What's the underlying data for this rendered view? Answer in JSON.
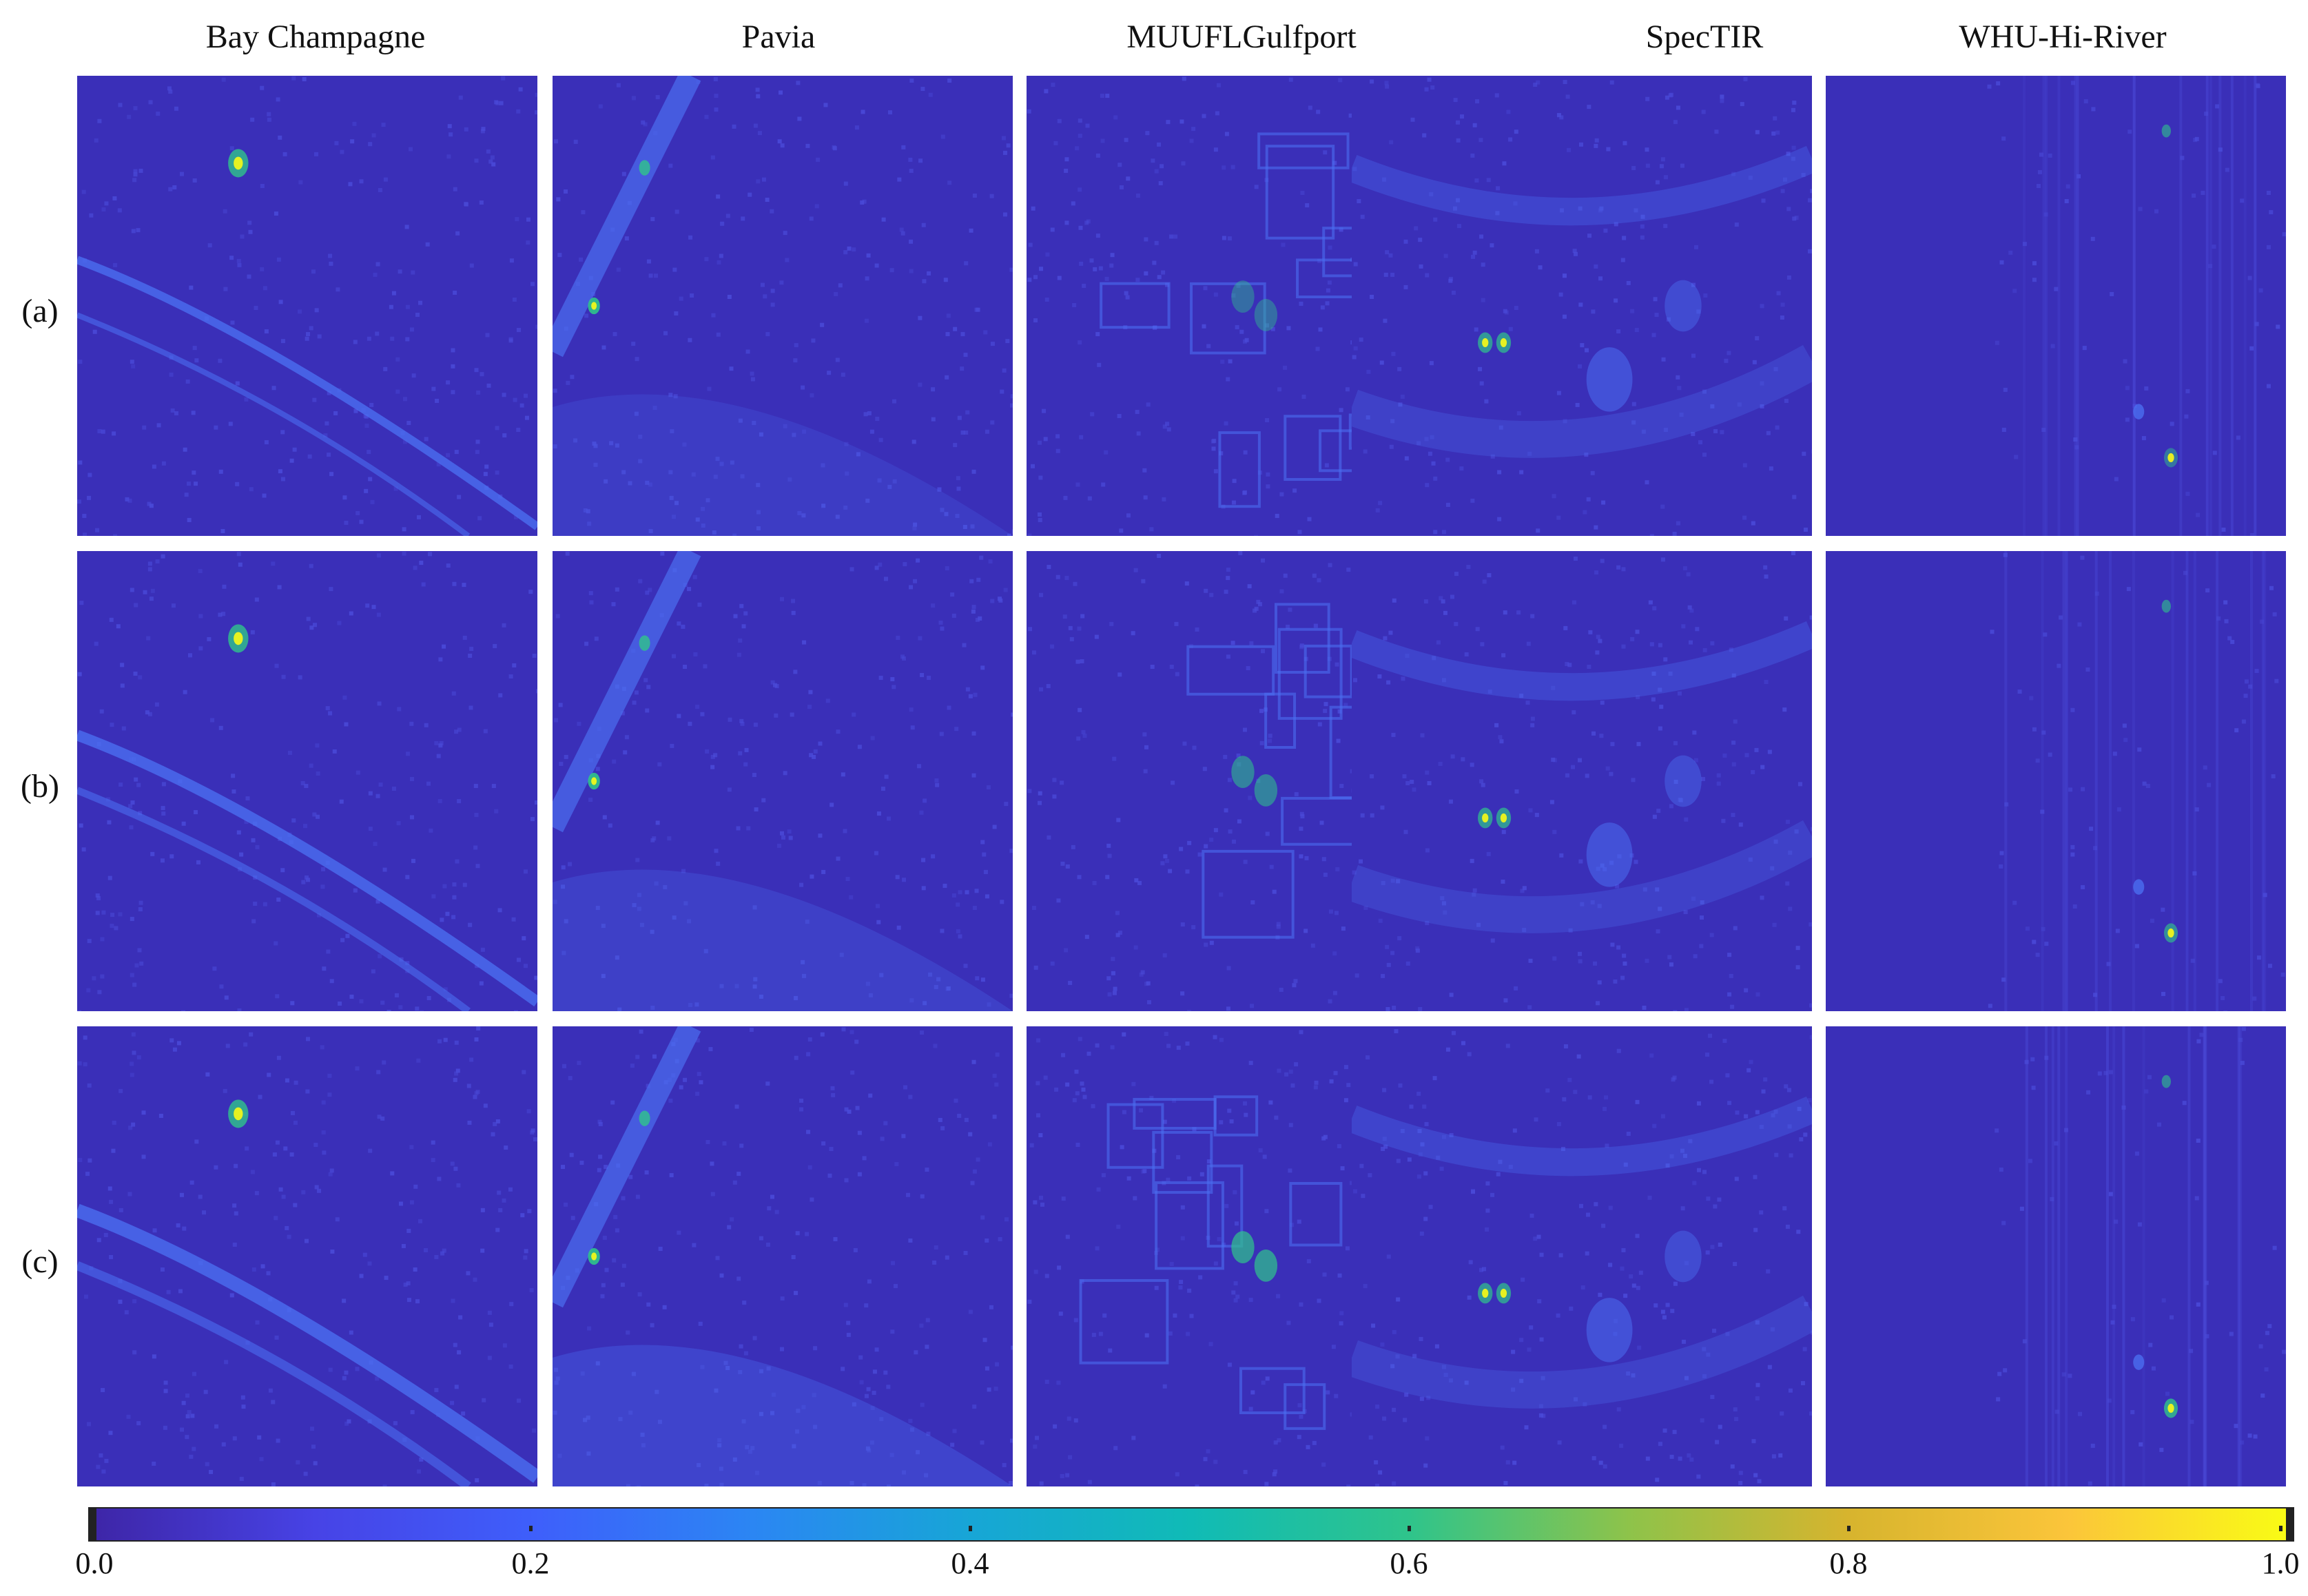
{
  "columns": [
    "Bay Champagne",
    "Pavia",
    "MUUFLGulfport",
    "SpecTIR",
    "WHU-Hi-River"
  ],
  "rows": [
    "(a)",
    "(b)",
    "(c)"
  ],
  "colorbar": {
    "ticks": [
      "0.0",
      "0.2",
      "0.4",
      "0.6",
      "0.8",
      "1.0"
    ],
    "colormap": [
      "#3e26a8",
      "#4743e6",
      "#3e5ffb",
      "#2b86f3",
      "#17a6d6",
      "#10bbb6",
      "#2fc48b",
      "#8ec34a",
      "#d7b42e",
      "#fbc53a",
      "#f9fb15"
    ]
  },
  "colors": {
    "background": "#3a2fb8",
    "texture": "#4a4ad8",
    "feature": "#4b6ef0",
    "hot": "#f9fb15",
    "warm": "#2fc48b"
  }
}
